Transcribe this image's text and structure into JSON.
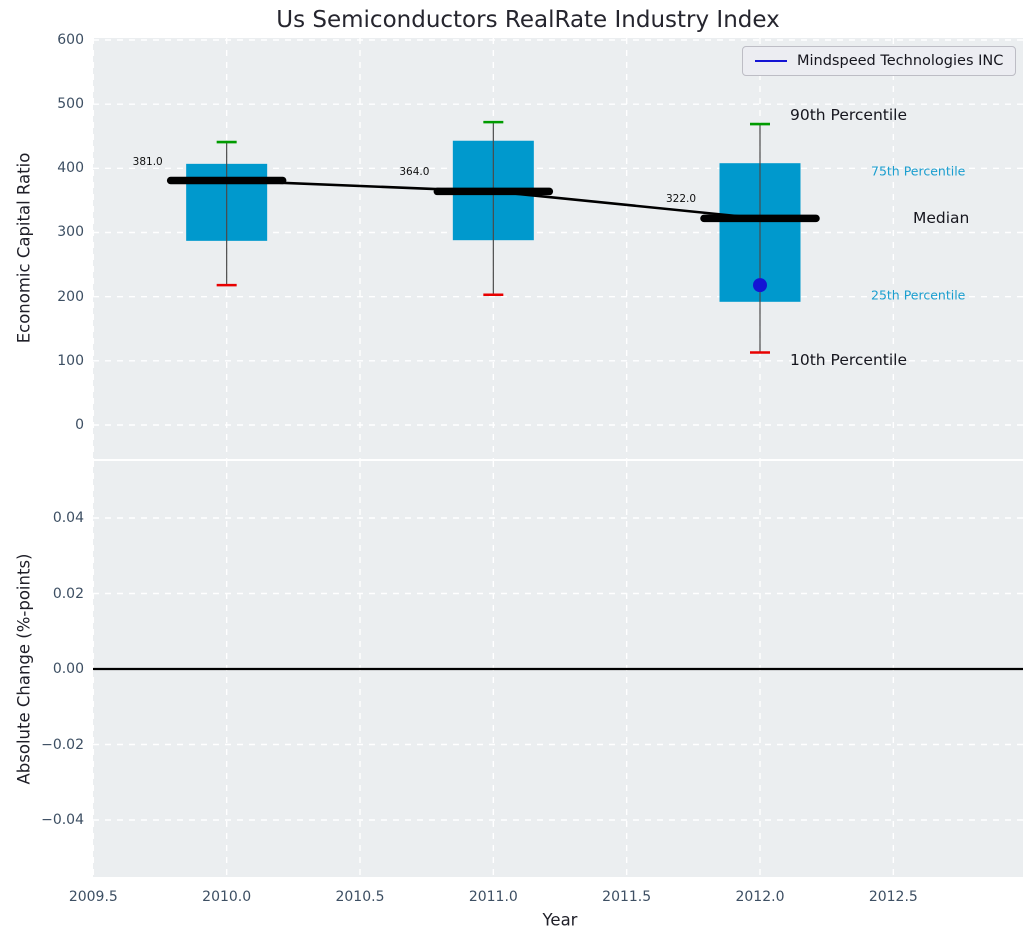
{
  "title": "Us Semiconductors RealRate Industry Index",
  "legend": {
    "label": "Mindspeed Technologies INC"
  },
  "colors": {
    "box_fill": "#0099cd",
    "median": "#000000",
    "trend": "#000000",
    "p90_cap": "#009b00",
    "p10_cap": "#e80000",
    "whisker": "#4a4a4a",
    "company": "#1414d4",
    "annotation_cyan": "#1a9ecf",
    "annotation_dark": "#16161e",
    "axes_bg": "#ebeef0",
    "tick_text": "#3d4f63",
    "zero_line": "#000000"
  },
  "chart_data": [
    {
      "type": "boxplot-series",
      "title": "Us Semiconductors RealRate Industry Index",
      "xlabel": "Year",
      "ylabel": "Economic Capital Ratio",
      "xlim": [
        2009.5,
        2012.99
      ],
      "ylim": [
        -53,
        603
      ],
      "grid": "white-dashed",
      "legend_position": "upper-right",
      "legend_entries": [
        "Mindspeed Technologies INC"
      ],
      "x": [
        2010,
        2011,
        2012
      ],
      "boxes": [
        {
          "year": 2010,
          "p90": 441,
          "p75": 407,
          "median": 381,
          "p25": 287,
          "p10": 218,
          "median_label": "381.0"
        },
        {
          "year": 2011,
          "p90": 472,
          "p75": 443,
          "median": 364,
          "p25": 288,
          "p10": 203,
          "median_label": "364.0"
        },
        {
          "year": 2012,
          "p90": 469,
          "p75": 408,
          "median": 322,
          "p25": 192,
          "p10": 113,
          "median_label": "322.0"
        }
      ],
      "series": [
        {
          "name": "90th Percentile",
          "values": [
            441,
            472,
            469
          ]
        },
        {
          "name": "75th Percentile",
          "values": [
            407,
            443,
            408
          ]
        },
        {
          "name": "Median",
          "values": [
            381,
            364,
            322
          ]
        },
        {
          "name": "25th Percentile",
          "values": [
            287,
            288,
            192
          ]
        },
        {
          "name": "10th Percentile",
          "values": [
            218,
            203,
            113
          ]
        }
      ],
      "company_point": {
        "name": "Mindspeed Technologies INC",
        "year": 2012,
        "value": 218
      },
      "yticks": [
        {
          "value": 0,
          "label": "0"
        },
        {
          "value": 100,
          "label": "100"
        },
        {
          "value": 200,
          "label": "200"
        },
        {
          "value": 300,
          "label": "300"
        },
        {
          "value": 400,
          "label": "400"
        },
        {
          "value": 500,
          "label": "500"
        },
        {
          "value": 600,
          "label": "600"
        }
      ],
      "xticks": [
        {
          "value": 2009.5,
          "label": "2009.5"
        },
        {
          "value": 2010.0,
          "label": "2010.0"
        },
        {
          "value": 2010.5,
          "label": "2010.5"
        },
        {
          "value": 2011.0,
          "label": "2011.0"
        },
        {
          "value": 2011.5,
          "label": "2011.5"
        },
        {
          "value": 2012.0,
          "label": "2012.0"
        },
        {
          "value": 2012.5,
          "label": "2012.5"
        }
      ],
      "annotations": [
        {
          "text": "90th Percentile",
          "style": "dark-lg"
        },
        {
          "text": "75th Percentile",
          "style": "cyan-sm"
        },
        {
          "text": "Median",
          "style": "dark-lg"
        },
        {
          "text": "25th Percentile",
          "style": "cyan-sm"
        },
        {
          "text": "10th Percentile",
          "style": "dark-lg"
        }
      ]
    },
    {
      "type": "line",
      "xlabel": "Year",
      "ylabel": "Absolute Change (%-points)",
      "ylim": [
        -0.055,
        0.055
      ],
      "zero_line": 0.0,
      "yticks": [
        {
          "value": 0.04,
          "label": "0.04"
        },
        {
          "value": 0.02,
          "label": "0.02"
        },
        {
          "value": 0,
          "label": "0.00"
        },
        {
          "value": -0.02,
          "label": "−0.02"
        },
        {
          "value": -0.04,
          "label": "−0.04"
        }
      ],
      "xticks": [
        {
          "value": 2009.5,
          "label": "2009.5"
        },
        {
          "value": 2010.0,
          "label": "2010.0"
        },
        {
          "value": 2010.5,
          "label": "2010.5"
        },
        {
          "value": 2011.0,
          "label": "2011.0"
        },
        {
          "value": 2011.5,
          "label": "2011.5"
        },
        {
          "value": 2012.0,
          "label": "2012.0"
        },
        {
          "value": 2012.5,
          "label": "2012.5"
        }
      ]
    }
  ]
}
